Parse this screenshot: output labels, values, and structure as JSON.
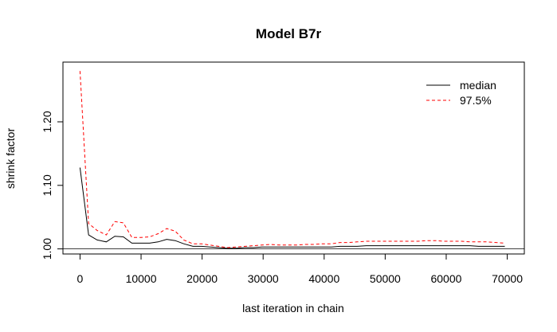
{
  "chart_data": {
    "type": "line",
    "title": "Model B7r",
    "xlabel": "last iteration in chain",
    "ylabel": "shrink factor",
    "xlim": [
      -2800,
      72800
    ],
    "ylim": [
      0.992,
      1.294
    ],
    "x_ticks": [
      0,
      10000,
      20000,
      30000,
      40000,
      50000,
      60000,
      70000
    ],
    "x_tick_labels": [
      "0",
      "10000",
      "20000",
      "30000",
      "40000",
      "50000",
      "60000",
      "70000"
    ],
    "y_ticks": [
      1.0,
      1.1,
      1.2
    ],
    "y_tick_labels": [
      "1.00",
      "1.10",
      "1.20"
    ],
    "reference_line": 1.0,
    "legend_position": "top-right",
    "grid": false,
    "x": [
      0,
      1400,
      2800,
      4300,
      5700,
      7100,
      8500,
      10000,
      11400,
      12800,
      14200,
      15600,
      17000,
      18500,
      19900,
      21300,
      22700,
      24100,
      25600,
      27000,
      28400,
      29800,
      31200,
      32700,
      34100,
      35500,
      36900,
      38300,
      39800,
      41200,
      42600,
      44000,
      45400,
      46900,
      48300,
      49700,
      51100,
      52500,
      54000,
      55400,
      56800,
      58200,
      59600,
      61100,
      62500,
      63900,
      65300,
      66700,
      68200,
      69600
    ],
    "series": [
      {
        "name": "median",
        "color": "#000000",
        "dash": "solid",
        "values": [
          1.128,
          1.022,
          1.014,
          1.011,
          1.02,
          1.019,
          1.009,
          1.009,
          1.009,
          1.011,
          1.015,
          1.013,
          1.008,
          1.004,
          1.004,
          1.003,
          1.002,
          1.001,
          1.001,
          1.002,
          1.002,
          1.003,
          1.003,
          1.003,
          1.003,
          1.003,
          1.003,
          1.003,
          1.003,
          1.003,
          1.004,
          1.004,
          1.004,
          1.005,
          1.005,
          1.005,
          1.005,
          1.005,
          1.005,
          1.005,
          1.005,
          1.005,
          1.005,
          1.005,
          1.005,
          1.005,
          1.004,
          1.004,
          1.004,
          1.004
        ]
      },
      {
        "name": "97.5%",
        "color": "#ff0000",
        "dash": "4,3",
        "values": [
          1.28,
          1.04,
          1.029,
          1.022,
          1.043,
          1.041,
          1.018,
          1.018,
          1.019,
          1.024,
          1.032,
          1.028,
          1.014,
          1.008,
          1.008,
          1.006,
          1.004,
          1.002,
          1.003,
          1.004,
          1.005,
          1.006,
          1.007,
          1.006,
          1.006,
          1.006,
          1.007,
          1.007,
          1.008,
          1.008,
          1.01,
          1.01,
          1.011,
          1.012,
          1.012,
          1.012,
          1.012,
          1.012,
          1.012,
          1.012,
          1.013,
          1.013,
          1.012,
          1.012,
          1.012,
          1.011,
          1.011,
          1.011,
          1.01,
          1.009
        ]
      }
    ]
  }
}
